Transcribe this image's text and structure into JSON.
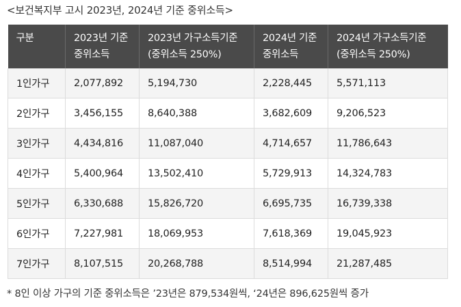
{
  "caption": "<보건복지부 고시 2023년, 2024년 기준 중위소득>",
  "table": {
    "headers": [
      [
        "구분",
        ""
      ],
      [
        "2023년 기준",
        "중위소득"
      ],
      [
        "2023년 가구소득기준",
        "(중위소득 250%)"
      ],
      [
        "2024년 기준",
        "중위소득"
      ],
      [
        "2024년 가구소득기준",
        "(중위소득 250%)"
      ]
    ],
    "rows": [
      [
        "1인가구",
        "2,077,892",
        "5,194,730",
        "2,228,445",
        "5,571,113"
      ],
      [
        "2인가구",
        "3,456,155",
        "8,640,388",
        "3,682,609",
        "9,206,523"
      ],
      [
        "3인가구",
        "4,434,816",
        "11,087,040",
        "4,714,657",
        "11,786,643"
      ],
      [
        "4인가구",
        "5,400,964",
        "13,502,410",
        "5,729,913",
        "14,324,783"
      ],
      [
        "5인가구",
        "6,330,688",
        "15,826,720",
        "6,695,735",
        "16,739,338"
      ],
      [
        "6인가구",
        "7,227,981",
        "18,069,953",
        "7,618,369",
        "19,045,923"
      ],
      [
        "7인가구",
        "8,107,515",
        "20,268,788",
        "8,514,994",
        "21,287,485"
      ]
    ]
  },
  "footnote": "* 8인 이상 가구의 기준 중위소득은 ’23년은 879,534원씩, ‘24년은 896,625원씩 증가",
  "colors": {
    "header_bg": "#4a4a4a",
    "header_text": "#ffffff",
    "row_alt_bg": "#f4f4f4",
    "border": "#dcdcdc"
  }
}
